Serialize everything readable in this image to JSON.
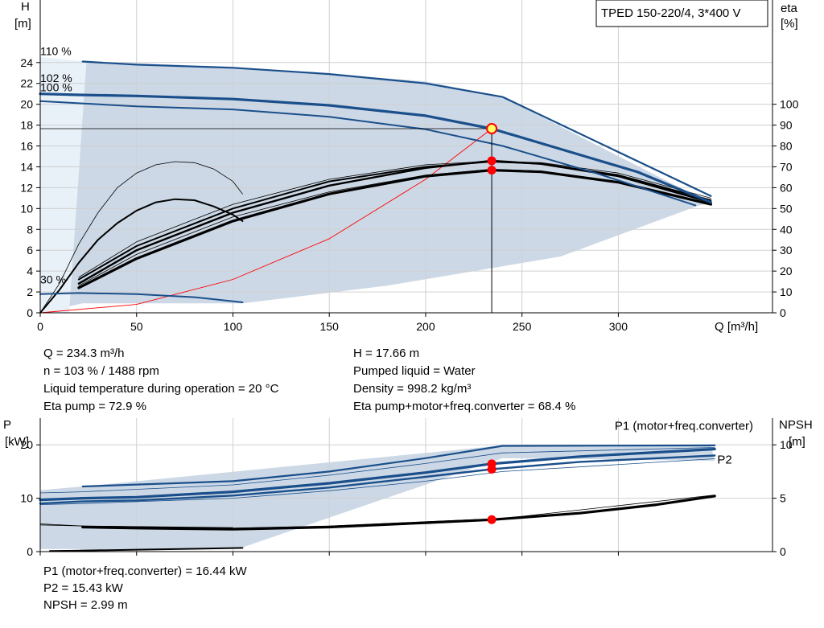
{
  "title": "TPED 150-220/4, 3*400 V",
  "colors": {
    "envelope": "#ccd8e6",
    "envelope_light": "#e8f0f8",
    "curve_blue": "#1a4f8b",
    "curve_black": "#000000",
    "system_curve": "#ff0000",
    "duty_point": "#ff0000",
    "duty_point_ring": "#ffff66",
    "grid": "#d0d0d0"
  },
  "readout_top": {
    "left": [
      "Q = 234.3 m³/h",
      "n = 103 % / 1488 rpm",
      "Liquid temperature during operation = 20 °C",
      "Eta pump = 72.9 %"
    ],
    "right": [
      "H = 17.66 m",
      "Pumped liquid = Water",
      "Density = 998.2 kg/m³",
      "Eta pump+motor+freq.converter = 68.4 %"
    ]
  },
  "readout_bottom": [
    "P1 (motor+freq.converter) = 16.44 kW",
    "P2 = 15.43 kW",
    "NPSH = 2.99 m"
  ],
  "chart_data": [
    {
      "type": "line",
      "name": "head-efficiency",
      "x_axis": {
        "label": "Q [m³/h]",
        "range": [
          0,
          380
        ],
        "ticks": [
          0,
          50,
          100,
          150,
          200,
          250,
          300
        ]
      },
      "y_axis_left": {
        "label_line1": "H",
        "label_line2": "[m]",
        "range": [
          0,
          30
        ],
        "ticks": [
          0,
          2,
          4,
          6,
          8,
          10,
          12,
          14,
          16,
          18,
          20,
          22,
          24
        ]
      },
      "y_axis_right": {
        "label_line1": "eta",
        "label_line2": "[%]",
        "range": [
          0,
          150
        ],
        "ticks": [
          0,
          10,
          20,
          30,
          40,
          50,
          60,
          70,
          80,
          90,
          100
        ]
      },
      "grid": true,
      "speed_labels": [
        {
          "text": "110 %",
          "x": 0,
          "y": 24.5
        },
        {
          "text": "102 %",
          "x": 0,
          "y": 21.9
        },
        {
          "text": "100 %",
          "x": 0,
          "y": 21.0
        },
        {
          "text": "30 %",
          "x": 0,
          "y": 2.6
        }
      ],
      "envelope": [
        [
          0,
          24.5
        ],
        [
          22,
          24.1
        ],
        [
          100,
          23.6
        ],
        [
          200,
          22.2
        ],
        [
          240,
          20.7
        ],
        [
          348,
          10.5
        ],
        [
          342,
          10.3
        ],
        [
          270,
          5.4
        ],
        [
          180,
          2.6
        ],
        [
          105,
          0.9
        ],
        [
          22,
          0.9
        ],
        [
          0,
          0
        ],
        [
          0,
          24.5
        ]
      ],
      "envelope_light": [
        [
          0,
          24.5
        ],
        [
          24,
          24.1
        ],
        [
          15,
          0
        ],
        [
          0,
          0
        ]
      ],
      "head_curves": [
        {
          "name": "110 %",
          "width": 2.2,
          "points": [
            [
              22,
              24.1
            ],
            [
              50,
              23.8
            ],
            [
              100,
              23.5
            ],
            [
              150,
              22.9
            ],
            [
              200,
              22.0
            ],
            [
              240,
              20.7
            ],
            [
              348,
              11.2
            ]
          ]
        },
        {
          "name": "103 %",
          "width": 3.2,
          "points": [
            [
              0,
              21.0
            ],
            [
              20,
              20.9
            ],
            [
              50,
              20.8
            ],
            [
              100,
              20.5
            ],
            [
              150,
              19.9
            ],
            [
              200,
              18.9
            ],
            [
              234.3,
              17.66
            ],
            [
              270,
              15.7
            ],
            [
              310,
              13.5
            ],
            [
              348,
              10.6
            ]
          ]
        },
        {
          "name": "100 %",
          "width": 2.0,
          "points": [
            [
              0,
              20.3
            ],
            [
              20,
              20.1
            ],
            [
              50,
              19.8
            ],
            [
              100,
              19.5
            ],
            [
              150,
              18.8
            ],
            [
              200,
              17.6
            ],
            [
              240,
              16.0
            ],
            [
              290,
              13.3
            ],
            [
              340,
              10.3
            ]
          ]
        },
        {
          "name": "30 %",
          "width": 2.0,
          "points": [
            [
              0,
              1.8
            ],
            [
              20,
              1.9
            ],
            [
              50,
              1.8
            ],
            [
              80,
              1.5
            ],
            [
              105,
              1.0
            ]
          ]
        }
      ],
      "system_curve": [
        [
          0,
          0
        ],
        [
          50,
          0.8
        ],
        [
          100,
          3.2
        ],
        [
          150,
          7.1
        ],
        [
          200,
          12.8
        ],
        [
          234.3,
          17.66
        ]
      ],
      "efficiency_curves": [
        {
          "name": "eta-30-thin",
          "width": 0.8,
          "points": [
            [
              0,
              0
            ],
            [
              10,
              14
            ],
            [
              20,
              33
            ],
            [
              30,
              48
            ],
            [
              40,
              60
            ],
            [
              50,
              67
            ],
            [
              60,
              71
            ],
            [
              70,
              72.5
            ],
            [
              80,
              72
            ],
            [
              90,
              69
            ],
            [
              100,
              63
            ],
            [
              105,
              57
            ]
          ]
        },
        {
          "name": "eta-30",
          "width": 2.0,
          "points": [
            [
              0,
              0
            ],
            [
              10,
              11
            ],
            [
              20,
              24
            ],
            [
              30,
              35
            ],
            [
              40,
              43
            ],
            [
              50,
              49
            ],
            [
              60,
              53
            ],
            [
              70,
              54.5
            ],
            [
              80,
              54
            ],
            [
              90,
              51
            ],
            [
              100,
              47
            ],
            [
              105,
              44
            ]
          ]
        },
        {
          "name": "eta-110-thin",
          "width": 0.8,
          "points": [
            [
              20,
              17
            ],
            [
              50,
              34
            ],
            [
              100,
              52
            ],
            [
              150,
              64
            ],
            [
              200,
              71
            ],
            [
              234,
              72.7
            ],
            [
              260,
              72.0
            ],
            [
              300,
              67
            ],
            [
              348,
              55
            ]
          ]
        },
        {
          "name": "eta-110",
          "width": 2.0,
          "points": [
            [
              20,
              16
            ],
            [
              50,
              32
            ],
            [
              100,
              50
            ],
            [
              150,
              63
            ],
            [
              200,
              70
            ],
            [
              234,
              72.5
            ],
            [
              260,
              71.5
            ],
            [
              300,
              66
            ],
            [
              348,
              54
            ]
          ]
        },
        {
          "name": "eta-pump",
          "width": 2.4,
          "points": [
            [
              20,
              14
            ],
            [
              50,
              30
            ],
            [
              100,
              48
            ],
            [
              150,
              61
            ],
            [
              200,
              69.5
            ],
            [
              234.3,
              72.9
            ],
            [
              260,
              71.4
            ],
            [
              300,
              65.5
            ],
            [
              348,
              53
            ]
          ]
        },
        {
          "name": "eta-total-thin",
          "width": 0.8,
          "points": [
            [
              20,
              13
            ],
            [
              50,
              28
            ],
            [
              100,
              46
            ],
            [
              150,
              58
            ],
            [
              200,
              66
            ],
            [
              234,
              68.8
            ],
            [
              260,
              68
            ],
            [
              300,
              63
            ],
            [
              348,
              52
            ]
          ]
        },
        {
          "name": "eta-total",
          "width": 3.2,
          "points": [
            [
              20,
              12
            ],
            [
              50,
              26
            ],
            [
              100,
              44
            ],
            [
              150,
              57
            ],
            [
              200,
              65.5
            ],
            [
              234.3,
              68.4
            ],
            [
              260,
              67.6
            ],
            [
              300,
              62.6
            ],
            [
              348,
              52
            ]
          ]
        }
      ],
      "duty_point": {
        "q": 234.3,
        "h": 17.66,
        "eta_pump": 72.9,
        "eta_total": 68.4
      }
    },
    {
      "type": "line",
      "name": "power-npsh",
      "x_axis": {
        "range": [
          0,
          380
        ],
        "ticks": [
          0,
          50,
          100,
          150,
          200,
          250,
          300
        ]
      },
      "y_axis_left": {
        "label_line1": "P",
        "label_line2": "[kW]",
        "range": [
          0,
          25
        ],
        "ticks": [
          0,
          10,
          20
        ]
      },
      "y_axis_right": {
        "label_line1": "NPSH",
        "label_line2": "[m]",
        "range": [
          0,
          12.5
        ],
        "ticks": [
          0,
          5,
          10
        ]
      },
      "grid": true,
      "series_labels": [
        {
          "text": "P1 (motor+freq.converter)",
          "x": 370,
          "y": 22.8
        },
        {
          "text": "P2",
          "x": 359,
          "y": 16.5
        }
      ],
      "envelope": [
        [
          0,
          0.5
        ],
        [
          22,
          0.5
        ],
        [
          15,
          0
        ],
        [
          105,
          0.8
        ],
        [
          240,
          17.5
        ],
        [
          350,
          17.0
        ],
        [
          348,
          19.9
        ],
        [
          240,
          19.9
        ],
        [
          22,
          12.2
        ],
        [
          0,
          11.5
        ],
        [
          0,
          0.5
        ]
      ],
      "power_curves": [
        {
          "name": "P1-110",
          "color": "blue",
          "width": 2.2,
          "points": [
            [
              22,
              12.2
            ],
            [
              100,
              13.2
            ],
            [
              150,
              15
            ],
            [
              200,
              17.5
            ],
            [
              240,
              19.8
            ],
            [
              350,
              19.9
            ]
          ]
        },
        {
          "name": "P1-thin",
          "color": "blue",
          "width": 0.8,
          "points": [
            [
              0,
              11.0
            ],
            [
              22,
              11.2
            ],
            [
              100,
              12.5
            ],
            [
              150,
              14.3
            ],
            [
              200,
              16.5
            ],
            [
              240,
              18.5
            ],
            [
              350,
              19.5
            ]
          ]
        },
        {
          "name": "P1",
          "color": "blue",
          "width": 3.2,
          "points": [
            [
              0,
              9.7
            ],
            [
              22,
              10
            ],
            [
              50,
              10.2
            ],
            [
              100,
              11.2
            ],
            [
              150,
              12.8
            ],
            [
              200,
              14.8
            ],
            [
              234.3,
              16.44
            ],
            [
              280,
              17.8
            ],
            [
              350,
              19.2
            ]
          ]
        },
        {
          "name": "P2",
          "color": "blue",
          "width": 2.4,
          "points": [
            [
              0,
              9.0
            ],
            [
              22,
              9.4
            ],
            [
              50,
              9.6
            ],
            [
              100,
              10.5
            ],
            [
              150,
              12.0
            ],
            [
              200,
              14
            ],
            [
              234.3,
              15.43
            ],
            [
              280,
              16.8
            ],
            [
              350,
              18.0
            ]
          ]
        },
        {
          "name": "P2-thin",
          "color": "blue",
          "width": 0.8,
          "points": [
            [
              0,
              8.8
            ],
            [
              22,
              9.0
            ],
            [
              100,
              10.0
            ],
            [
              150,
              11.4
            ],
            [
              200,
              13.2
            ],
            [
              240,
              15.0
            ],
            [
              350,
              17.4
            ]
          ]
        },
        {
          "name": "P-30",
          "color": "black",
          "width": 2.0,
          "points": [
            [
              5,
              0.1
            ],
            [
              22,
              0.2
            ],
            [
              60,
              0.4
            ],
            [
              105,
              0.7
            ]
          ]
        },
        {
          "name": "P-30-thin",
          "color": "black",
          "width": 0.8,
          "points": [
            [
              0,
              5.0
            ],
            [
              22,
              4.8
            ],
            [
              100,
              4.5
            ]
          ]
        }
      ],
      "npsh_curves": [
        {
          "name": "NPSH-thick",
          "width": 3.2,
          "points": [
            [
              22,
              2.3
            ],
            [
              50,
              2.2
            ],
            [
              100,
              2.1
            ],
            [
              150,
              2.3
            ],
            [
              200,
              2.7
            ],
            [
              234.3,
              2.99
            ],
            [
              280,
              3.6
            ],
            [
              320,
              4.4
            ],
            [
              350,
              5.2
            ]
          ]
        },
        {
          "name": "NPSH-thin",
          "width": 0.8,
          "points": [
            [
              0,
              2.6
            ],
            [
              22,
              2.4
            ],
            [
              100,
              2.2
            ],
            [
              150,
              2.4
            ],
            [
              200,
              2.8
            ],
            [
              240,
              3.1
            ],
            [
              350,
              5.3
            ]
          ]
        }
      ],
      "duty_point": {
        "q": 234.3,
        "p1": 16.44,
        "p2": 15.43,
        "npsh": 2.99
      }
    }
  ]
}
